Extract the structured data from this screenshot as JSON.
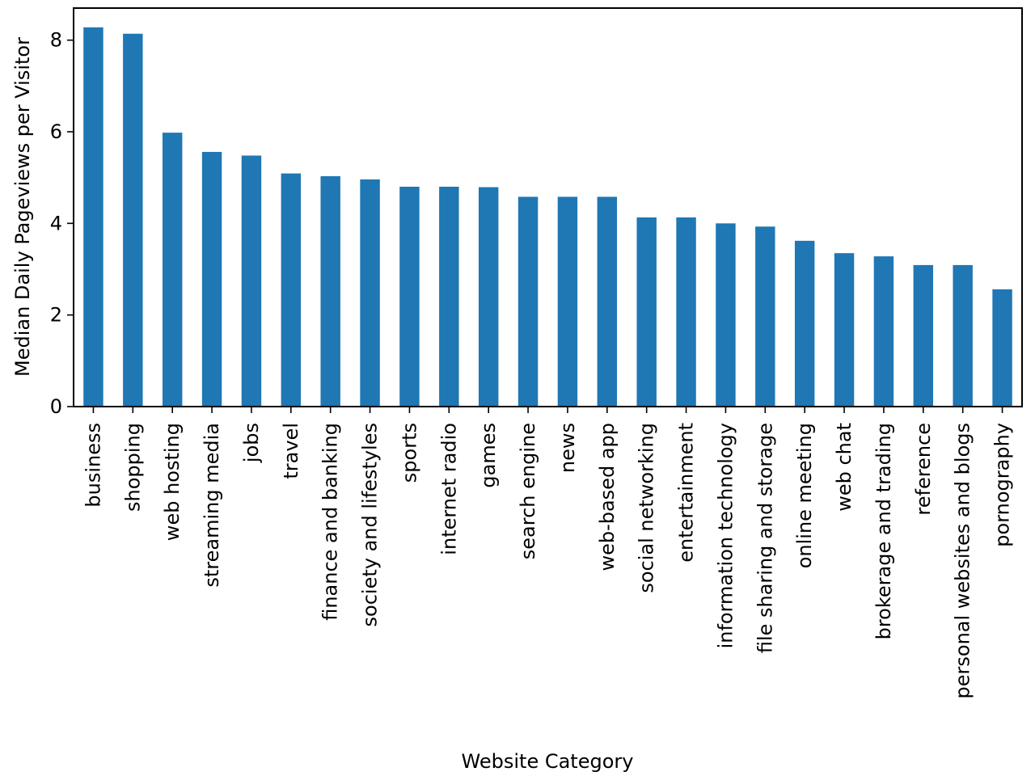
{
  "chart_data": {
    "type": "bar",
    "title": "",
    "xlabel": "Website Category",
    "ylabel": "Median Daily Pageviews per Visitor",
    "ylim": [
      0,
      8.7
    ],
    "yticks": [
      0,
      2,
      4,
      6,
      8
    ],
    "grid": false,
    "legend": "none",
    "bar_color": "#1f77b4",
    "categories": [
      "business",
      "shopping",
      "web hosting",
      "streaming media",
      "jobs",
      "travel",
      "finance and banking",
      "society and lifestyles",
      "sports",
      "internet radio",
      "games",
      "search engine",
      "news",
      "web-based app",
      "social networking",
      "entertainment",
      "information technology",
      "file sharing and storage",
      "online meeting",
      "web chat",
      "brokerage and trading",
      "reference",
      "personal websites and blogs",
      "pornography"
    ],
    "values": [
      8.28,
      8.14,
      5.98,
      5.56,
      5.48,
      5.09,
      5.03,
      4.96,
      4.8,
      4.8,
      4.79,
      4.58,
      4.58,
      4.58,
      4.13,
      4.13,
      4.0,
      3.93,
      3.62,
      3.35,
      3.28,
      3.09,
      3.09,
      2.56
    ]
  }
}
